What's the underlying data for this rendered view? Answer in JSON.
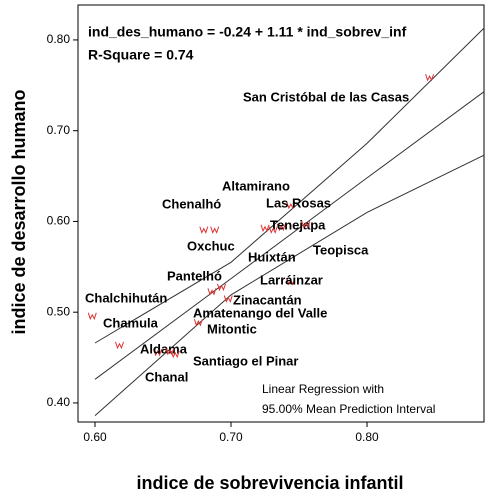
{
  "chart_data": {
    "type": "scatter",
    "equation": "ind_des_humano = -0.24 + 1.11 * ind_sobrev_inf",
    "r_square": "R-Square = 0.74",
    "legend_note": [
      "Linear Regression with",
      "95.00% Mean Prediction Interval"
    ],
    "x_label": "indice de sobrevivencia infantil",
    "y_label": "indice de desarrollo humano",
    "xlim": [
      0.5875,
      0.886
    ],
    "ylim": [
      0.379,
      0.8385
    ],
    "xticks": [
      {
        "value": 0.6,
        "label": "0.60"
      },
      {
        "value": 0.7,
        "label": "0.70"
      },
      {
        "value": 0.8,
        "label": "0.80"
      }
    ],
    "yticks": [
      {
        "value": 0.4,
        "label": "0.40"
      },
      {
        "value": 0.5,
        "label": "0.50"
      },
      {
        "value": 0.6,
        "label": "0.60"
      },
      {
        "value": 0.7,
        "label": "0.70"
      },
      {
        "value": 0.8,
        "label": "0.80"
      }
    ],
    "points": {
      "color": "#e03030",
      "labels": [
        "San Cristóbal de las Casas",
        "Chenalhó",
        "Oxchuc",
        "Altamirano",
        "Las Rosas",
        "Tenejapa",
        "Huixtán",
        "Teopisca",
        "Larráinzar",
        "Pantelhó",
        "Zinacantán",
        "Amatenango del Valle",
        "Mitontic",
        "Chalchihután",
        "Chamula",
        "Aldama",
        "Santiago el Pinar",
        "Chanal"
      ],
      "x": [
        0.846,
        0.68,
        0.688,
        0.725,
        0.744,
        0.737,
        0.731,
        0.755,
        0.744,
        0.686,
        0.698,
        0.693,
        0.676,
        0.598,
        0.618,
        0.646,
        0.659,
        0.655
      ],
      "y": [
        0.759,
        0.591,
        0.591,
        0.593,
        0.618,
        0.594,
        0.591,
        0.597,
        0.534,
        0.523,
        0.515,
        0.528,
        0.489,
        0.496,
        0.464,
        0.456,
        0.454,
        0.457
      ]
    },
    "lines": [
      {
        "color": "#333333",
        "x": [
          0.6,
          0.7,
          0.8,
          0.886
        ],
        "y": [
          0.426,
          0.537,
          0.648,
          0.743
        ]
      },
      {
        "color": "#333333",
        "x": [
          0.6,
          0.7,
          0.8,
          0.886
        ],
        "y": [
          0.466,
          0.555,
          0.686,
          0.813
        ]
      },
      {
        "color": "#333333",
        "x": [
          0.6,
          0.7,
          0.8,
          0.886
        ],
        "y": [
          0.386,
          0.519,
          0.61,
          0.673
        ]
      }
    ]
  }
}
